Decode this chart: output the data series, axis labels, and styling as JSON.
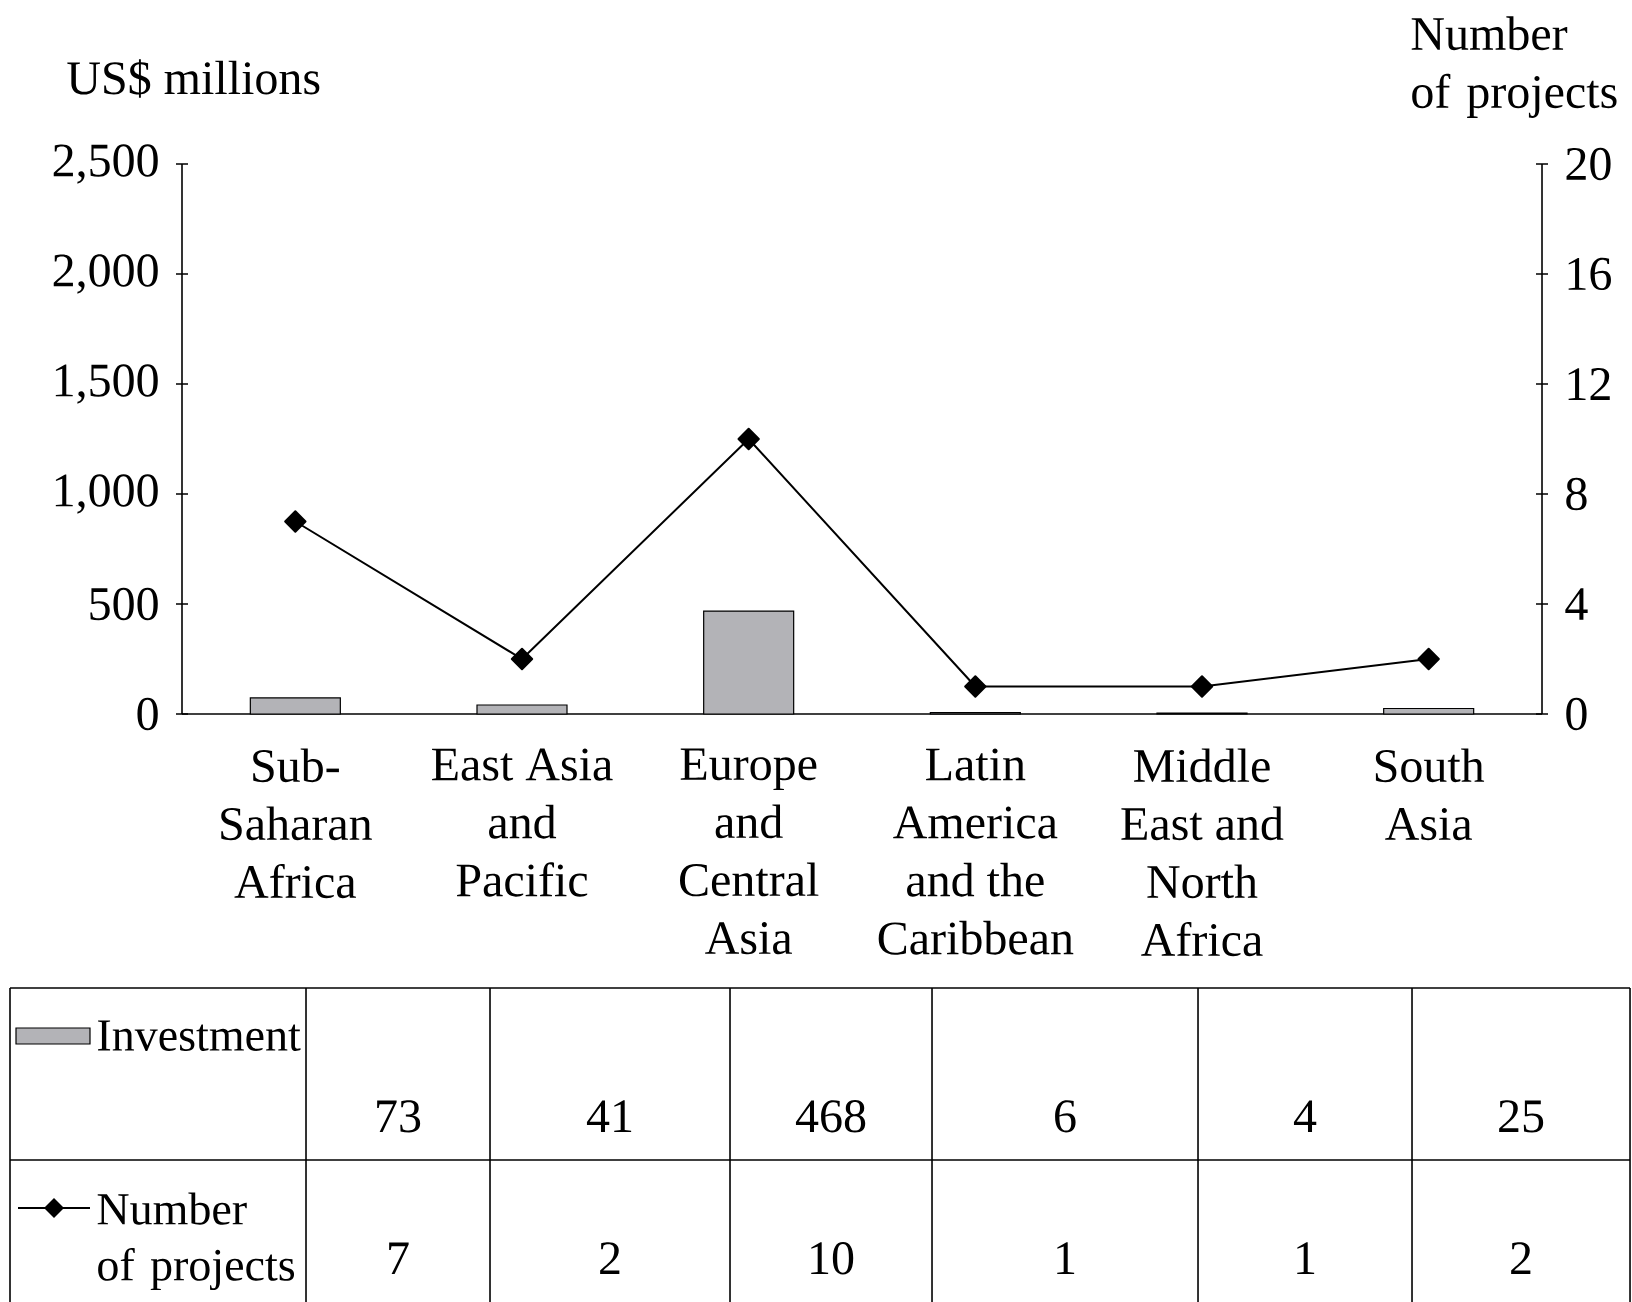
{
  "chart_data": {
    "type": "bar",
    "categories": [
      "Sub-Saharan Africa",
      "East Asia and Pacific",
      "Europe and Central Asia",
      "Latin America and the Caribbean",
      "Middle East and North Africa",
      "South Asia"
    ],
    "series": [
      {
        "name": "Investment",
        "color": "#b3b3b7",
        "values": [
          73,
          41,
          468,
          6,
          4,
          25
        ]
      },
      {
        "name": "Number of projects",
        "type": "line",
        "axis": "y2",
        "color": "#000000",
        "marker": "diamond",
        "values": [
          7,
          2,
          10,
          1,
          1,
          2
        ]
      }
    ],
    "ylabel": "US$ millions",
    "y2label": "Number of projects",
    "ylim": [
      0,
      2500
    ],
    "yticks": [
      0,
      500,
      {
        "value": 1000,
        "label": "1,000"
      },
      {
        "value": 1500,
        "label": "1,500"
      },
      {
        "value": 2000,
        "label": "2,000"
      },
      {
        "value": 2500,
        "label": "2,500"
      }
    ],
    "y2lim": [
      0,
      20
    ],
    "y2ticks": [
      0,
      4,
      8,
      12,
      16,
      20
    ],
    "data_labels": true,
    "legend": "bottom"
  }
}
